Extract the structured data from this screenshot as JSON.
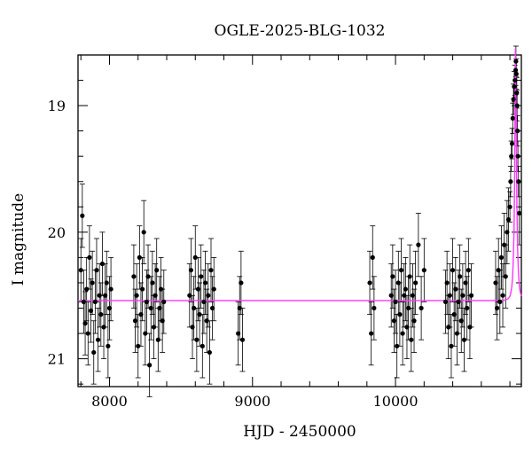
{
  "chart_data": {
    "type": "scatter",
    "title": "OGLE-2025-BLG-1032",
    "xlabel": "HJD - 2450000",
    "ylabel": "I magnitude",
    "xlim": [
      7780,
      10880
    ],
    "ylim": [
      21.22,
      18.6
    ],
    "y_inverted": true,
    "x_ticks": [
      8000,
      9000,
      10000
    ],
    "y_ticks": [
      19,
      20,
      21
    ],
    "grid": false,
    "legend": "none",
    "colors": {
      "data": "#000000",
      "model": "#ff33ff"
    },
    "model": {
      "baseline": 20.54,
      "t0": 10840,
      "tE": 16.5,
      "u0": 0.14
    },
    "series": [
      {
        "values": [
          [
            7800,
            20.3
          ],
          [
            7810,
            19.87
          ],
          [
            7820,
            20.55
          ],
          [
            7830,
            20.72
          ],
          [
            7840,
            20.45
          ],
          [
            7850,
            20.8
          ],
          [
            7860,
            20.2
          ],
          [
            7870,
            20.62
          ],
          [
            7880,
            20.4
          ],
          [
            7890,
            20.95
          ],
          [
            7900,
            20.55
          ],
          [
            7910,
            20.3
          ],
          [
            7920,
            20.85
          ],
          [
            7930,
            20.5
          ],
          [
            7940,
            20.65
          ],
          [
            7950,
            20.25
          ],
          [
            7960,
            20.75
          ],
          [
            7970,
            20.5
          ],
          [
            7980,
            20.4
          ],
          [
            7990,
            20.9
          ],
          [
            8000,
            20.6
          ],
          [
            8010,
            20.45
          ],
          [
            8170,
            20.35
          ],
          [
            8180,
            20.7
          ],
          [
            8190,
            20.5
          ],
          [
            8200,
            20.9
          ],
          [
            8210,
            20.2
          ],
          [
            8220,
            20.65
          ],
          [
            8230,
            20.45
          ],
          [
            8240,
            20.0
          ],
          [
            8250,
            20.8
          ],
          [
            8260,
            20.55
          ],
          [
            8270,
            20.35
          ],
          [
            8280,
            21.05
          ],
          [
            8290,
            20.6
          ],
          [
            8300,
            20.4
          ],
          [
            8310,
            20.75
          ],
          [
            8320,
            20.5
          ],
          [
            8330,
            20.3
          ],
          [
            8340,
            20.85
          ],
          [
            8350,
            20.6
          ],
          [
            8360,
            20.45
          ],
          [
            8370,
            20.7
          ],
          [
            8380,
            20.55
          ],
          [
            8560,
            20.5
          ],
          [
            8570,
            20.3
          ],
          [
            8580,
            20.75
          ],
          [
            8590,
            20.6
          ],
          [
            8600,
            20.2
          ],
          [
            8610,
            20.85
          ],
          [
            8620,
            20.45
          ],
          [
            8630,
            20.65
          ],
          [
            8640,
            20.35
          ],
          [
            8650,
            20.9
          ],
          [
            8660,
            20.55
          ],
          [
            8670,
            20.4
          ],
          [
            8680,
            20.7
          ],
          [
            8690,
            20.5
          ],
          [
            8700,
            20.95
          ],
          [
            8710,
            20.3
          ],
          [
            8720,
            20.6
          ],
          [
            8730,
            20.45
          ],
          [
            8900,
            20.8
          ],
          [
            8910,
            20.6
          ],
          [
            8920,
            20.4
          ],
          [
            8930,
            20.85
          ],
          [
            9820,
            20.4
          ],
          [
            9830,
            20.8
          ],
          [
            9840,
            20.2
          ],
          [
            9850,
            20.6
          ],
          [
            9970,
            20.5
          ],
          [
            9980,
            20.35
          ],
          [
            9990,
            20.7
          ],
          [
            10000,
            20.55
          ],
          [
            10010,
            20.9
          ],
          [
            10020,
            20.4
          ],
          [
            10030,
            20.65
          ],
          [
            10040,
            20.3
          ],
          [
            10050,
            20.8
          ],
          [
            10060,
            20.5
          ],
          [
            10070,
            20.45
          ],
          [
            10080,
            20.75
          ],
          [
            10090,
            20.6
          ],
          [
            10100,
            20.35
          ],
          [
            10110,
            20.85
          ],
          [
            10120,
            20.5
          ],
          [
            10130,
            20.7
          ],
          [
            10140,
            20.4
          ],
          [
            10160,
            20.1
          ],
          [
            10180,
            20.6
          ],
          [
            10200,
            20.3
          ],
          [
            10350,
            20.55
          ],
          [
            10360,
            20.4
          ],
          [
            10370,
            20.75
          ],
          [
            10380,
            20.5
          ],
          [
            10390,
            20.9
          ],
          [
            10400,
            20.3
          ],
          [
            10410,
            20.65
          ],
          [
            10420,
            20.45
          ],
          [
            10430,
            20.8
          ],
          [
            10440,
            20.55
          ],
          [
            10450,
            20.35
          ],
          [
            10460,
            20.7
          ],
          [
            10470,
            20.5
          ],
          [
            10480,
            20.85
          ],
          [
            10490,
            20.4
          ],
          [
            10500,
            20.6
          ],
          [
            10510,
            20.3
          ],
          [
            10520,
            20.75
          ],
          [
            10530,
            20.5
          ],
          [
            10700,
            20.4
          ],
          [
            10710,
            20.6
          ],
          [
            10720,
            20.3
          ],
          [
            10730,
            20.55
          ],
          [
            10740,
            20.2
          ],
          [
            10750,
            20.5
          ],
          [
            10760,
            20.1
          ],
          [
            10770,
            20.35
          ],
          [
            10780,
            20.0
          ],
          [
            10790,
            19.9
          ],
          [
            10800,
            19.8
          ],
          [
            10805,
            19.6
          ],
          [
            10810,
            19.4
          ],
          [
            10815,
            19.3
          ],
          [
            10820,
            19.1
          ],
          [
            10825,
            18.95
          ],
          [
            10830,
            18.85
          ],
          [
            10835,
            18.8
          ],
          [
            10840,
            18.72
          ],
          [
            10842,
            18.65
          ],
          [
            10845,
            18.75
          ],
          [
            10848,
            18.9
          ],
          [
            10850,
            19.0
          ],
          [
            10853,
            19.2
          ],
          [
            10856,
            19.4
          ],
          [
            10860,
            19.6
          ],
          [
            10865,
            19.85
          ]
        ]
      }
    ]
  }
}
